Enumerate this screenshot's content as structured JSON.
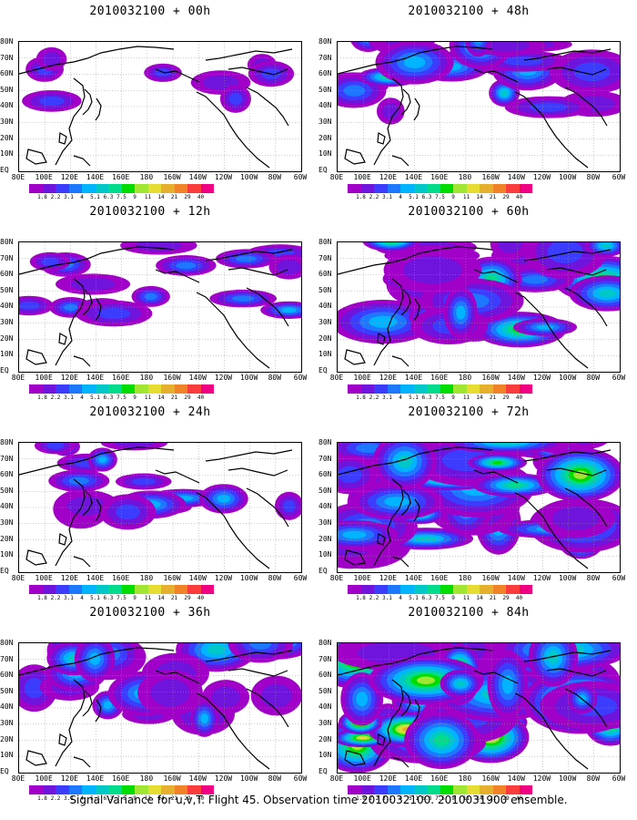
{
  "caption": "Signal Variance for u,v,T. Flight 45. Observation time 2010032100. 2010031900 ensemble.",
  "lon_labels": [
    "80E",
    "100E",
    "120E",
    "140E",
    "160E",
    "180",
    "160W",
    "140W",
    "120W",
    "100W",
    "80W",
    "60W"
  ],
  "lat_labels": [
    "80N",
    "70N",
    "60N",
    "50N",
    "40N",
    "30N",
    "20N",
    "10N",
    "EQ"
  ],
  "colorbar": {
    "labels": [
      "1.8",
      "2.2",
      "3.1",
      "4",
      "5.1",
      "6.3",
      "7.5",
      "9",
      "11",
      "14",
      "21",
      "29",
      "40"
    ],
    "colors": [
      "#a000c8",
      "#6e14dc",
      "#3c3cff",
      "#1e78ff",
      "#00b4ff",
      "#00c8c8",
      "#00dc8c",
      "#00dc00",
      "#a0e632",
      "#e6dc32",
      "#e6af2d",
      "#f08228",
      "#fa3c3c",
      "#f00082"
    ]
  },
  "panels": [
    {
      "title": "2010032100 + 00h"
    },
    {
      "title": "2010032100 + 48h"
    },
    {
      "title": "2010032100 + 12h"
    },
    {
      "title": "2010032100 + 60h"
    },
    {
      "title": "2010032100 + 24h"
    },
    {
      "title": "2010032100 + 72h"
    },
    {
      "title": "2010032100 + 36h"
    },
    {
      "title": "2010032100 + 84h"
    }
  ]
}
